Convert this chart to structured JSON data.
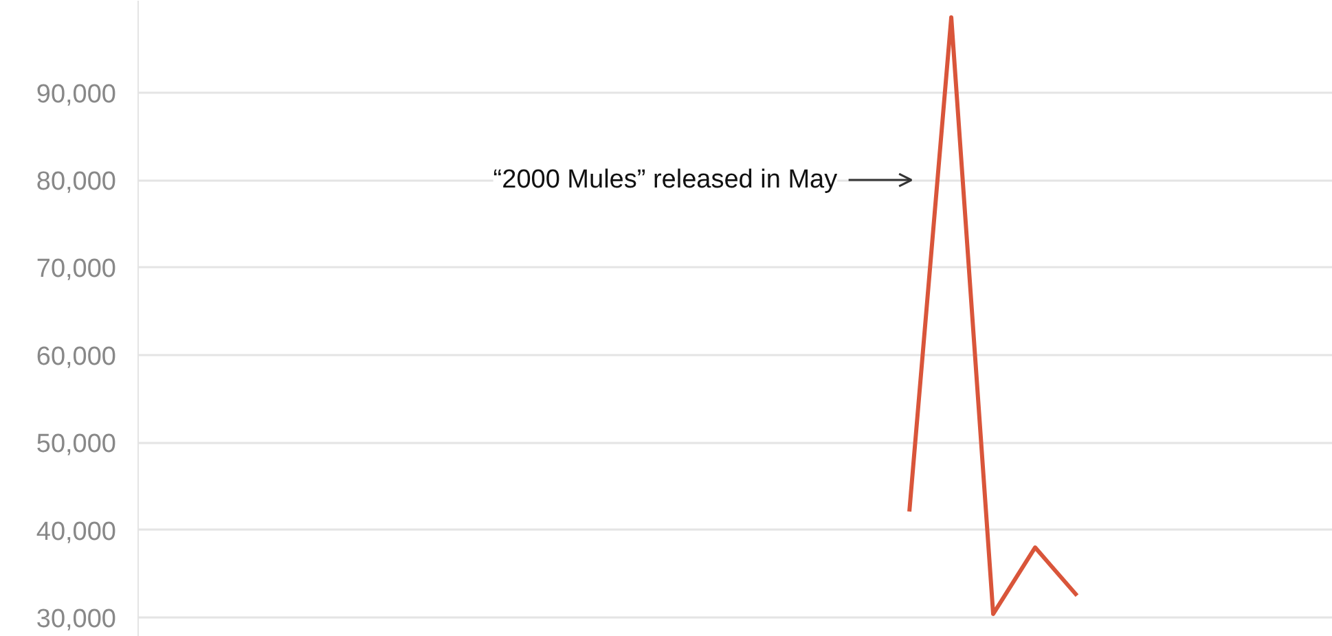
{
  "chart_data": {
    "type": "line",
    "categories": [
      null,
      null,
      null,
      null,
      null,
      null,
      null,
      null,
      null,
      null,
      null,
      null,
      null,
      null,
      null,
      null,
      null,
      null,
      null,
      null,
      null,
      null,
      null,
      null,
      null,
      null,
      null,
      null,
      null
    ],
    "series": [
      {
        "color": "#d9553a",
        "values": [
          null,
          null,
          null,
          null,
          null,
          null,
          null,
          null,
          null,
          null,
          null,
          null,
          null,
          null,
          null,
          null,
          null,
          null,
          42100,
          98600,
          30400,
          38000,
          32500,
          null,
          null,
          null,
          null,
          null,
          null
        ]
      }
    ],
    "ylim": [
      27800,
      100500
    ],
    "yticks": [
      {
        "value": 30000,
        "label": "30,000"
      },
      {
        "value": 40000,
        "label": "40,000"
      },
      {
        "value": 50000,
        "label": "50,000"
      },
      {
        "value": 60000,
        "label": "60,000"
      },
      {
        "value": 70000,
        "label": "70,000"
      },
      {
        "value": 80000,
        "label": "80,000"
      },
      {
        "value": 90000,
        "label": "90,000"
      }
    ],
    "grid": "y",
    "tick_labels": "y",
    "annotations": [
      "“2000 Mules” released in May"
    ]
  }
}
